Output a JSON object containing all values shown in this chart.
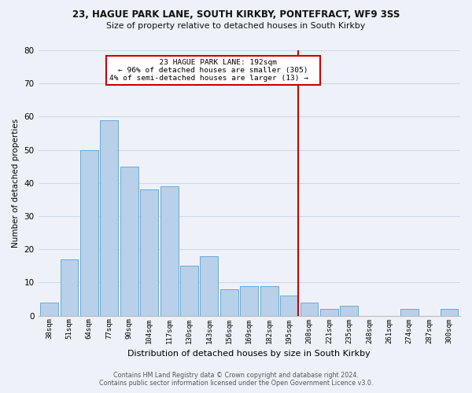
{
  "title1": "23, HAGUE PARK LANE, SOUTH KIRKBY, PONTEFRACT, WF9 3SS",
  "title2": "Size of property relative to detached houses in South Kirkby",
  "xlabel": "Distribution of detached houses by size in South Kirkby",
  "ylabel": "Number of detached properties",
  "bar_labels": [
    "38sqm",
    "51sqm",
    "64sqm",
    "77sqm",
    "90sqm",
    "104sqm",
    "117sqm",
    "130sqm",
    "143sqm",
    "156sqm",
    "169sqm",
    "182sqm",
    "195sqm",
    "208sqm",
    "221sqm",
    "235sqm",
    "248sqm",
    "261sqm",
    "274sqm",
    "287sqm",
    "300sqm"
  ],
  "bar_values": [
    4,
    17,
    50,
    59,
    45,
    38,
    39,
    15,
    18,
    8,
    9,
    9,
    6,
    4,
    2,
    3,
    0,
    0,
    2,
    0,
    2
  ],
  "bar_color": "#b8d0ea",
  "bar_edge_color": "#6aaad4",
  "vline_color": "#cc0000",
  "annotation_title": "23 HAGUE PARK LANE: 192sqm",
  "annotation_line1": "← 96% of detached houses are smaller (305)",
  "annotation_line2": "4% of semi-detached houses are larger (13) →",
  "annotation_box_edgecolor": "#cc0000",
  "ylim": [
    0,
    80
  ],
  "yticks": [
    0,
    10,
    20,
    30,
    40,
    50,
    60,
    70,
    80
  ],
  "grid_color": "#d0d8e8",
  "background_color": "#eef2f8",
  "footer1": "Contains HM Land Registry data © Crown copyright and database right 2024.",
  "footer2": "Contains public sector information licensed under the Open Government Licence v3.0."
}
